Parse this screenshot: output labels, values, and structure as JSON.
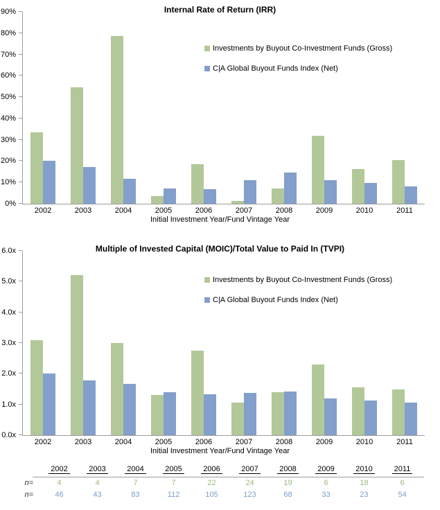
{
  "colors": {
    "gross_bar": "#b2c899",
    "net_bar": "#839fcb",
    "axis_line": "#9c9c9c",
    "table_gross_text": "#9bba7d",
    "table_net_text": "#7b9dc9"
  },
  "chart_data": [
    {
      "type": "bar",
      "title": "Internal Rate of Return (IRR)",
      "xlabel": "Initial Investment Year/Fund Vintage Year",
      "categories": [
        "2002",
        "2003",
        "2004",
        "2005",
        "2006",
        "2007",
        "2008",
        "2009",
        "2010",
        "2011"
      ],
      "series": [
        {
          "name": "Investments by Buyout Co-Investment Funds (Gross)",
          "color": "#b2c899",
          "values": [
            33.5,
            54.5,
            78.5,
            3.5,
            18.5,
            1.2,
            7.3,
            32.0,
            16.3,
            20.5
          ]
        },
        {
          "name": "C|A Global Buyout Funds Index (Net)",
          "color": "#839fcb",
          "values": [
            20.0,
            17.3,
            11.8,
            7.3,
            6.8,
            11.0,
            14.7,
            11.0,
            9.8,
            8.0
          ]
        }
      ],
      "ylim": [
        0,
        90
      ],
      "ytick_step": 10,
      "ytick_format": "percent",
      "ytick_labels": [
        "0%",
        "10%",
        "20%",
        "30%",
        "40%",
        "50%",
        "60%",
        "70%",
        "80%",
        "90%"
      ],
      "grid": false,
      "legend_position": "upper-right-inside"
    },
    {
      "type": "bar",
      "title": "Multiple of Invested Capital (MOIC)/Total Value to Paid In (TVPI)",
      "xlabel": "Initial Investment Year/Fund Vintage Year",
      "categories": [
        "2002",
        "2003",
        "2004",
        "2005",
        "2006",
        "2007",
        "2008",
        "2009",
        "2010",
        "2011"
      ],
      "series": [
        {
          "name": "Investments by Buyout Co-Investment Funds (Gross)",
          "color": "#b2c899",
          "values": [
            3.1,
            5.2,
            3.0,
            1.3,
            2.75,
            1.05,
            1.4,
            2.3,
            1.55,
            1.5
          ]
        },
        {
          "name": "C|A Global Buyout Funds Index (Net)",
          "color": "#839fcb",
          "values": [
            2.0,
            1.78,
            1.67,
            1.4,
            1.33,
            1.38,
            1.42,
            1.2,
            1.13,
            1.07
          ]
        }
      ],
      "ylim": [
        0,
        6
      ],
      "ytick_step": 1,
      "ytick_format": "multiple",
      "ytick_labels": [
        "0.0x",
        "1.0x",
        "2.0x",
        "3.0x",
        "4.0x",
        "5.0x",
        "6.0x"
      ],
      "grid": false,
      "legend_position": "upper-right-inside"
    }
  ],
  "sample_table": {
    "row_label": "n=",
    "years": [
      "2002",
      "2003",
      "2004",
      "2005",
      "2006",
      "2007",
      "2008",
      "2009",
      "2010",
      "2011"
    ],
    "gross_n": [
      "4",
      "4",
      "7",
      "7",
      "22",
      "24",
      "19",
      "6",
      "18",
      "6"
    ],
    "net_n": [
      "46",
      "43",
      "83",
      "112",
      "105",
      "123",
      "68",
      "33",
      "23",
      "54"
    ]
  }
}
